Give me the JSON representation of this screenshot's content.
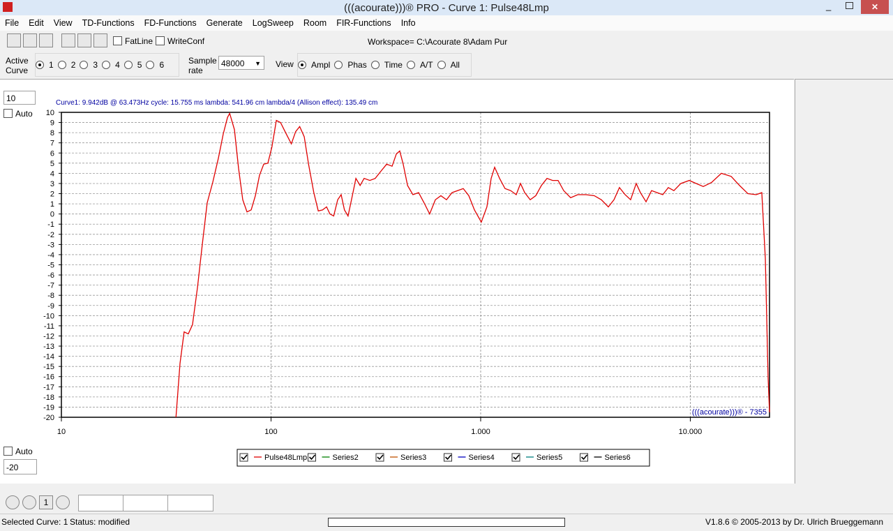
{
  "window": {
    "title": "(((acourate)))® PRO - Curve 1: Pulse48Lmp"
  },
  "menu": [
    "File",
    "Edit",
    "View",
    "TD-Functions",
    "FD-Functions",
    "Generate",
    "LogSweep",
    "Room",
    "FIR-Functions",
    "Info"
  ],
  "toolbar": {
    "checkboxes": [
      "FatLine",
      "WriteConf"
    ],
    "workspace": "Workspace= C:\\Acourate 8\\Adam Pur"
  },
  "controls": {
    "active_curve_label": [
      "Active",
      "Curve"
    ],
    "curves": [
      "1",
      "2",
      "3",
      "4",
      "5",
      "6"
    ],
    "sample_rate_label": [
      "Sample",
      "rate"
    ],
    "sample_rate": "48000",
    "view_label": "View",
    "views": [
      "Ampl",
      "Phas",
      "Time",
      "A/T",
      "All"
    ]
  },
  "scale": {
    "max": "10",
    "max_auto": "Auto",
    "min_auto": "Auto",
    "min": "-20"
  },
  "chart_data": {
    "type": "line",
    "xscale": "log",
    "grid": true,
    "annotations": [
      "Curve1:  9.942dB @ 63.473Hz   cycle: 15.755 ms   lambda: 541.96 cm  lambda/4 (Allison effect): 135.49 cm",
      "(((acourate)))® - 7355"
    ],
    "xlim": [
      10,
      23870
    ],
    "xticks": [
      10,
      100,
      {
        "value": 1000,
        "label": "1.000"
      },
      {
        "value": 10000,
        "label": "10.000"
      }
    ],
    "ylim": [
      -20,
      10
    ],
    "yticks": [
      -20,
      -19,
      -18,
      -17,
      -16,
      -15,
      -14,
      -13,
      -12,
      -11,
      -10,
      -9,
      -8,
      -7,
      -6,
      -5,
      -4,
      -3,
      -2,
      -1,
      0,
      1,
      2,
      3,
      4,
      5,
      6,
      7,
      8,
      9,
      10
    ],
    "x": [
      35.2,
      36.8,
      38.5,
      40.3,
      42.2,
      44.6,
      47,
      49.6,
      52.7,
      56.1,
      59.2,
      62,
      63.5,
      66.9,
      70,
      73.3,
      76.8,
      80.4,
      84.2,
      88.1,
      92.3,
      96.6,
      101,
      106,
      111,
      118,
      125,
      131,
      137,
      144,
      151,
      160,
      168,
      176,
      184,
      191,
      199,
      208,
      216,
      224,
      233,
      242,
      254,
      266,
      278,
      296,
      314,
      334,
      356,
      378,
      396,
      411,
      427,
      448,
      475,
      506,
      537,
      571,
      608,
      646,
      687,
      730,
      777,
      826,
      878,
      934,
      1007,
      1071,
      1122,
      1166,
      1231,
      1307,
      1390,
      1478,
      1549,
      1622,
      1723,
      1832,
      1948,
      2072,
      2203,
      2340,
      2489,
      2686,
      2904,
      3178,
      3484,
      3764,
      4064,
      4324,
      4592,
      4887,
      5191,
      5521,
      5781,
      6150,
      6535,
      6950,
      7390,
      7853,
      8350,
      9016,
      9885,
      10670,
      11530,
      12630,
      14060,
      15660,
      17180,
      18830,
      20620,
      21930,
      22800,
      23500,
      23870
    ],
    "series": [
      {
        "name": "Pulse48Lmp",
        "color": "#e00000",
        "values": [
          -20,
          -14.7,
          -11.6,
          -11.8,
          -10.9,
          -7.2,
          -3,
          1.1,
          3.1,
          5.5,
          7.9,
          9.5,
          9.9,
          8.3,
          4.5,
          1.4,
          0.2,
          0.4,
          1.8,
          3.8,
          4.9,
          5,
          6.6,
          9.2,
          9,
          7.9,
          6.9,
          8.1,
          8.6,
          7.6,
          4.9,
          2.1,
          0.3,
          0.4,
          0.7,
          0,
          -0.2,
          1.4,
          1.9,
          0.4,
          -0.2,
          1.4,
          3.5,
          2.8,
          3.5,
          3.3,
          3.5,
          4.2,
          4.9,
          4.7,
          5.9,
          6.2,
          4.9,
          2.8,
          1.9,
          2.1,
          1.1,
          0,
          1.4,
          1.8,
          1.4,
          2.1,
          2.3,
          2.5,
          1.8,
          0.4,
          -0.8,
          0.7,
          3.5,
          4.6,
          3.5,
          2.5,
          2.3,
          1.9,
          3,
          2.1,
          1.4,
          1.8,
          2.8,
          3.5,
          3.3,
          3.3,
          2.3,
          1.6,
          1.9,
          1.9,
          1.8,
          1.4,
          0.7,
          1.4,
          2.6,
          1.9,
          1.4,
          3,
          2.1,
          1.2,
          2.3,
          2.1,
          1.9,
          2.6,
          2.3,
          3,
          3.3,
          3,
          2.7,
          3.1,
          4,
          3.7,
          2.8,
          2,
          1.9,
          2.1,
          -4.4,
          -16.1,
          -19.5
        ]
      },
      {
        "name": "Series2",
        "color": "#008000"
      },
      {
        "name": "Series3",
        "color": "#c05000"
      },
      {
        "name": "Series4",
        "color": "#0000c0"
      },
      {
        "name": "Series5",
        "color": "#008080"
      },
      {
        "name": "Series6",
        "color": "#000000"
      }
    ]
  },
  "bottom": {
    "zoom_value": "1"
  },
  "status": {
    "selected": "Selected Curve: 1",
    "state": "Status: modified",
    "version": "V1.8.6 © 2005-2013 by Dr. Ulrich Brueggemann"
  }
}
